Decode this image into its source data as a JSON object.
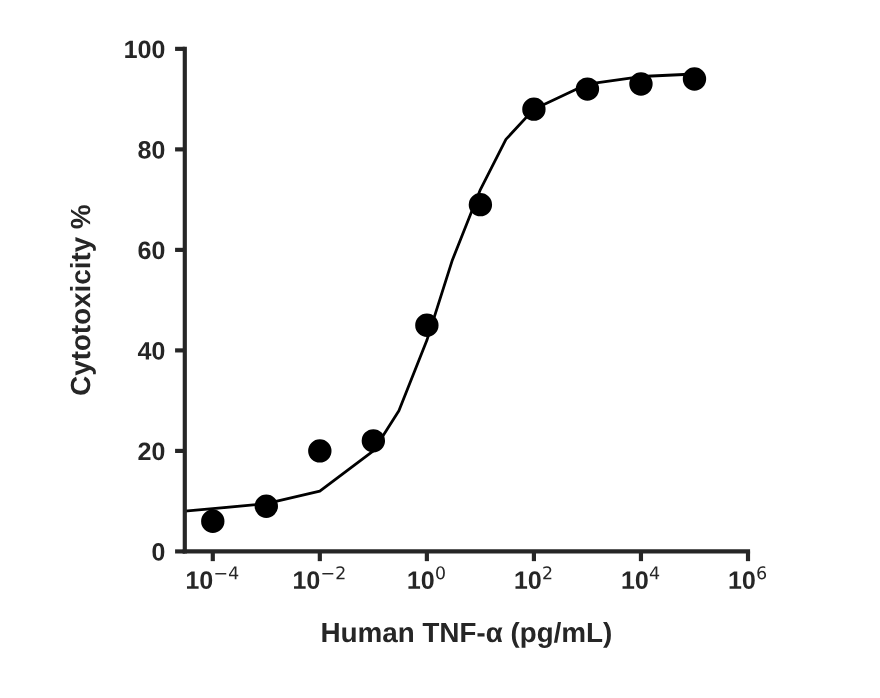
{
  "chart_data": {
    "type": "scatter",
    "xlabel": "Human TNF-α (pg/mL)",
    "ylabel": "Cytotoxicity %",
    "log": "x",
    "xlim": [
      3e-05,
      1000000
    ],
    "ylim": [
      0,
      100
    ],
    "xticks": [
      {
        "value": 0.0001,
        "label": "10$^{−4}$"
      },
      {
        "value": 0.01,
        "label": "10$^{−2}$"
      },
      {
        "value": 1,
        "label": "10$^{0}$"
      },
      {
        "value": 100,
        "label": "10$^{2}$"
      },
      {
        "value": 10000,
        "label": "10$^{4}$"
      },
      {
        "value": 1000000,
        "label": "10$^{6}$"
      }
    ],
    "yticks": [
      0,
      20,
      40,
      60,
      80,
      100
    ],
    "grid": false,
    "marker": "circle",
    "series": [
      {
        "color": "#000000",
        "x": [
          0.0001,
          0.001,
          0.01,
          0.1,
          1,
          10,
          100,
          1000,
          10000,
          100000
        ],
        "values": [
          6,
          9,
          20,
          22,
          45,
          69,
          88,
          92,
          93,
          94
        ]
      },
      {
        "type": "line",
        "color": "#000000",
        "marker": "none",
        "x": [
          3e-05,
          0.0001,
          0.001,
          0.01,
          0.1,
          0.3,
          1,
          3,
          10,
          30,
          100,
          1000,
          10000,
          100000
        ],
        "values": [
          8,
          8.5,
          9.5,
          12,
          20,
          28,
          42,
          58,
          72,
          82,
          88,
          93,
          94.5,
          95
        ]
      }
    ]
  }
}
